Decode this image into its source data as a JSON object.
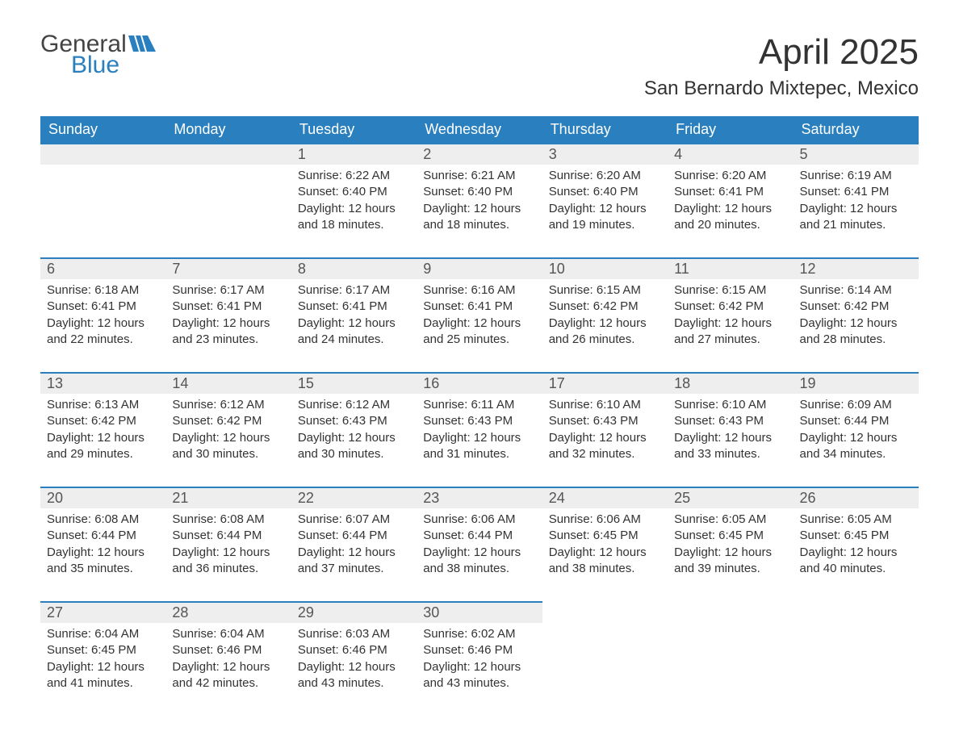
{
  "logo": {
    "word1": "General",
    "word2": "Blue"
  },
  "title": "April 2025",
  "location": "San Bernardo Mixtepec, Mexico",
  "colors": {
    "header_bg": "#2a7fbf",
    "header_text": "#ffffff",
    "daynum_bg": "#eeeeee",
    "row_border": "#2a7fbf",
    "body_text": "#333333",
    "logo_gray": "#444444",
    "logo_blue": "#2a7fbf"
  },
  "weekdays": [
    "Sunday",
    "Monday",
    "Tuesday",
    "Wednesday",
    "Thursday",
    "Friday",
    "Saturday"
  ],
  "weeks": [
    [
      {
        "empty": true
      },
      {
        "empty": true
      },
      {
        "day": "1",
        "sunrise": "Sunrise: 6:22 AM",
        "sunset": "Sunset: 6:40 PM",
        "daylight1": "Daylight: 12 hours",
        "daylight2": "and 18 minutes."
      },
      {
        "day": "2",
        "sunrise": "Sunrise: 6:21 AM",
        "sunset": "Sunset: 6:40 PM",
        "daylight1": "Daylight: 12 hours",
        "daylight2": "and 18 minutes."
      },
      {
        "day": "3",
        "sunrise": "Sunrise: 6:20 AM",
        "sunset": "Sunset: 6:40 PM",
        "daylight1": "Daylight: 12 hours",
        "daylight2": "and 19 minutes."
      },
      {
        "day": "4",
        "sunrise": "Sunrise: 6:20 AM",
        "sunset": "Sunset: 6:41 PM",
        "daylight1": "Daylight: 12 hours",
        "daylight2": "and 20 minutes."
      },
      {
        "day": "5",
        "sunrise": "Sunrise: 6:19 AM",
        "sunset": "Sunset: 6:41 PM",
        "daylight1": "Daylight: 12 hours",
        "daylight2": "and 21 minutes."
      }
    ],
    [
      {
        "day": "6",
        "sunrise": "Sunrise: 6:18 AM",
        "sunset": "Sunset: 6:41 PM",
        "daylight1": "Daylight: 12 hours",
        "daylight2": "and 22 minutes."
      },
      {
        "day": "7",
        "sunrise": "Sunrise: 6:17 AM",
        "sunset": "Sunset: 6:41 PM",
        "daylight1": "Daylight: 12 hours",
        "daylight2": "and 23 minutes."
      },
      {
        "day": "8",
        "sunrise": "Sunrise: 6:17 AM",
        "sunset": "Sunset: 6:41 PM",
        "daylight1": "Daylight: 12 hours",
        "daylight2": "and 24 minutes."
      },
      {
        "day": "9",
        "sunrise": "Sunrise: 6:16 AM",
        "sunset": "Sunset: 6:41 PM",
        "daylight1": "Daylight: 12 hours",
        "daylight2": "and 25 minutes."
      },
      {
        "day": "10",
        "sunrise": "Sunrise: 6:15 AM",
        "sunset": "Sunset: 6:42 PM",
        "daylight1": "Daylight: 12 hours",
        "daylight2": "and 26 minutes."
      },
      {
        "day": "11",
        "sunrise": "Sunrise: 6:15 AM",
        "sunset": "Sunset: 6:42 PM",
        "daylight1": "Daylight: 12 hours",
        "daylight2": "and 27 minutes."
      },
      {
        "day": "12",
        "sunrise": "Sunrise: 6:14 AM",
        "sunset": "Sunset: 6:42 PM",
        "daylight1": "Daylight: 12 hours",
        "daylight2": "and 28 minutes."
      }
    ],
    [
      {
        "day": "13",
        "sunrise": "Sunrise: 6:13 AM",
        "sunset": "Sunset: 6:42 PM",
        "daylight1": "Daylight: 12 hours",
        "daylight2": "and 29 minutes."
      },
      {
        "day": "14",
        "sunrise": "Sunrise: 6:12 AM",
        "sunset": "Sunset: 6:42 PM",
        "daylight1": "Daylight: 12 hours",
        "daylight2": "and 30 minutes."
      },
      {
        "day": "15",
        "sunrise": "Sunrise: 6:12 AM",
        "sunset": "Sunset: 6:43 PM",
        "daylight1": "Daylight: 12 hours",
        "daylight2": "and 30 minutes."
      },
      {
        "day": "16",
        "sunrise": "Sunrise: 6:11 AM",
        "sunset": "Sunset: 6:43 PM",
        "daylight1": "Daylight: 12 hours",
        "daylight2": "and 31 minutes."
      },
      {
        "day": "17",
        "sunrise": "Sunrise: 6:10 AM",
        "sunset": "Sunset: 6:43 PM",
        "daylight1": "Daylight: 12 hours",
        "daylight2": "and 32 minutes."
      },
      {
        "day": "18",
        "sunrise": "Sunrise: 6:10 AM",
        "sunset": "Sunset: 6:43 PM",
        "daylight1": "Daylight: 12 hours",
        "daylight2": "and 33 minutes."
      },
      {
        "day": "19",
        "sunrise": "Sunrise: 6:09 AM",
        "sunset": "Sunset: 6:44 PM",
        "daylight1": "Daylight: 12 hours",
        "daylight2": "and 34 minutes."
      }
    ],
    [
      {
        "day": "20",
        "sunrise": "Sunrise: 6:08 AM",
        "sunset": "Sunset: 6:44 PM",
        "daylight1": "Daylight: 12 hours",
        "daylight2": "and 35 minutes."
      },
      {
        "day": "21",
        "sunrise": "Sunrise: 6:08 AM",
        "sunset": "Sunset: 6:44 PM",
        "daylight1": "Daylight: 12 hours",
        "daylight2": "and 36 minutes."
      },
      {
        "day": "22",
        "sunrise": "Sunrise: 6:07 AM",
        "sunset": "Sunset: 6:44 PM",
        "daylight1": "Daylight: 12 hours",
        "daylight2": "and 37 minutes."
      },
      {
        "day": "23",
        "sunrise": "Sunrise: 6:06 AM",
        "sunset": "Sunset: 6:44 PM",
        "daylight1": "Daylight: 12 hours",
        "daylight2": "and 38 minutes."
      },
      {
        "day": "24",
        "sunrise": "Sunrise: 6:06 AM",
        "sunset": "Sunset: 6:45 PM",
        "daylight1": "Daylight: 12 hours",
        "daylight2": "and 38 minutes."
      },
      {
        "day": "25",
        "sunrise": "Sunrise: 6:05 AM",
        "sunset": "Sunset: 6:45 PM",
        "daylight1": "Daylight: 12 hours",
        "daylight2": "and 39 minutes."
      },
      {
        "day": "26",
        "sunrise": "Sunrise: 6:05 AM",
        "sunset": "Sunset: 6:45 PM",
        "daylight1": "Daylight: 12 hours",
        "daylight2": "and 40 minutes."
      }
    ],
    [
      {
        "day": "27",
        "sunrise": "Sunrise: 6:04 AM",
        "sunset": "Sunset: 6:45 PM",
        "daylight1": "Daylight: 12 hours",
        "daylight2": "and 41 minutes."
      },
      {
        "day": "28",
        "sunrise": "Sunrise: 6:04 AM",
        "sunset": "Sunset: 6:46 PM",
        "daylight1": "Daylight: 12 hours",
        "daylight2": "and 42 minutes."
      },
      {
        "day": "29",
        "sunrise": "Sunrise: 6:03 AM",
        "sunset": "Sunset: 6:46 PM",
        "daylight1": "Daylight: 12 hours",
        "daylight2": "and 43 minutes."
      },
      {
        "day": "30",
        "sunrise": "Sunrise: 6:02 AM",
        "sunset": "Sunset: 6:46 PM",
        "daylight1": "Daylight: 12 hours",
        "daylight2": "and 43 minutes."
      },
      {
        "empty": true,
        "noborder": true
      },
      {
        "empty": true,
        "noborder": true
      },
      {
        "empty": true,
        "noborder": true
      }
    ]
  ]
}
